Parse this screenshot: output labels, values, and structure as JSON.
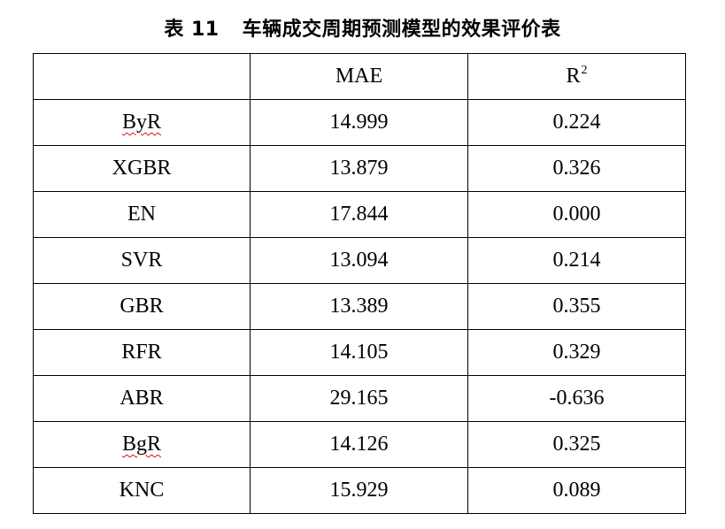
{
  "caption": {
    "number": "表 11",
    "title": "车辆成交周期预测模型的效果评价表"
  },
  "table": {
    "header": {
      "blank": "",
      "mae": "MAE",
      "r2_base": "R",
      "r2_exp": "2"
    },
    "rows": [
      {
        "model": "ByR",
        "mae": "14.999",
        "r2": "0.224",
        "spell_flag": true
      },
      {
        "model": "XGBR",
        "mae": "13.879",
        "r2": "0.326",
        "spell_flag": false
      },
      {
        "model": "EN",
        "mae": "17.844",
        "r2": "0.000",
        "spell_flag": false
      },
      {
        "model": "SVR",
        "mae": "13.094",
        "r2": "0.214",
        "spell_flag": false
      },
      {
        "model": "GBR",
        "mae": "13.389",
        "r2": "0.355",
        "spell_flag": false
      },
      {
        "model": "RFR",
        "mae": "14.105",
        "r2": "0.329",
        "spell_flag": false
      },
      {
        "model": "ABR",
        "mae": "29.165",
        "r2": "-0.636",
        "spell_flag": false
      },
      {
        "model": "BgR",
        "mae": "14.126",
        "r2": "0.325",
        "spell_flag": true
      },
      {
        "model": "KNC",
        "mae": "15.929",
        "r2": "0.089",
        "spell_flag": false
      }
    ]
  },
  "colors": {
    "text": "#000000",
    "border": "#000000",
    "spellcheck_underline": "#dd1111"
  }
}
